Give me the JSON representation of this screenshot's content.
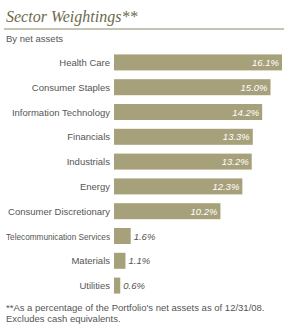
{
  "chart_data": {
    "type": "bar",
    "orientation": "horizontal",
    "title": "Sector Weightings**",
    "subtitle": "By net assets",
    "categories": [
      "Health Care",
      "Consumer Staples",
      "Information Technology",
      "Financials",
      "Industrials",
      "Energy",
      "Consumer Discretionary",
      "Telecommunication Services",
      "Materials",
      "Utilities"
    ],
    "values": [
      16.1,
      15.0,
      14.2,
      13.3,
      13.2,
      12.3,
      10.2,
      1.6,
      1.1,
      0.6
    ],
    "value_labels": [
      "16.1%",
      "15.0%",
      "14.2%",
      "13.3%",
      "13.2%",
      "12.3%",
      "10.2%",
      "1.6%",
      "1.1%",
      "0.6%"
    ],
    "color": "#a7a17b",
    "xlim": [
      0,
      16.1
    ],
    "xticks": [],
    "grid": false,
    "data_labels": true,
    "tick_labels": "y",
    "annotations": [
      "**As a percentage of the Portfolio's net assets as of 12/31/08. Excludes cash equivalents."
    ]
  }
}
